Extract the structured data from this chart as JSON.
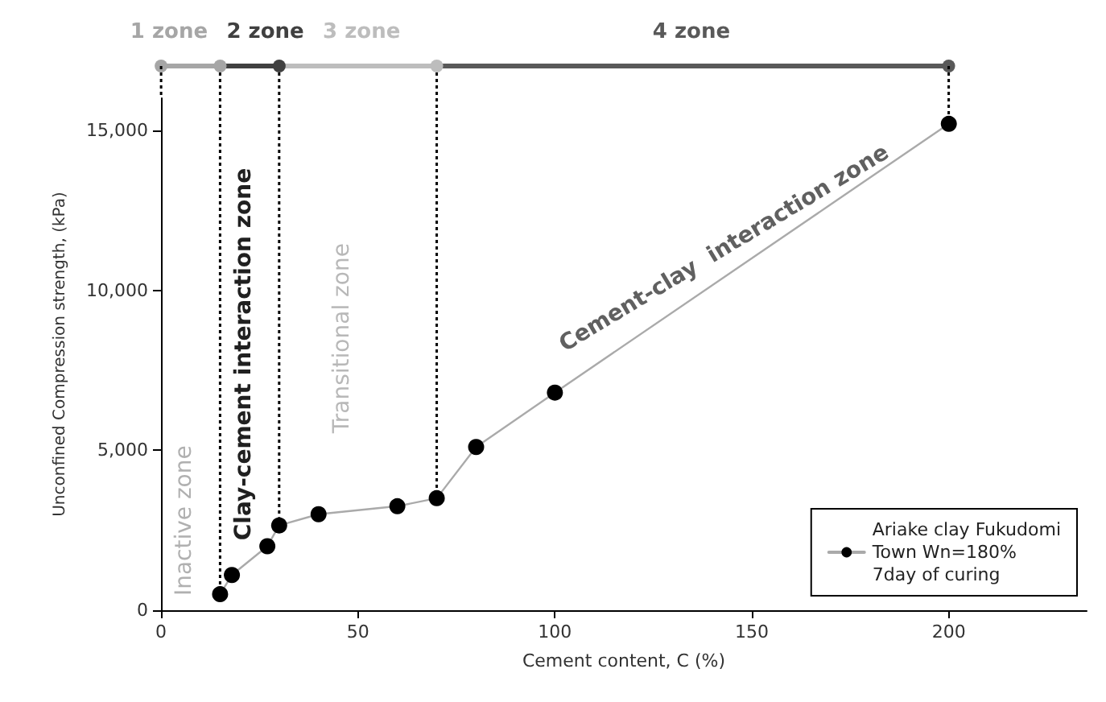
{
  "chart_data": {
    "type": "line",
    "xlabel": "Cement content, C (%)",
    "ylabel": "Unconfined Compression strength, (kPa)",
    "x": [
      15,
      18,
      27,
      30,
      40,
      60,
      70,
      80,
      100,
      200
    ],
    "series": [
      {
        "name": "Ariake clay Fukudomi\nTown Wn=180%\n7day of curing",
        "color": "#000000",
        "values": [
          500,
          1100,
          2000,
          2650,
          3000,
          3250,
          3500,
          5100,
          6800,
          15200
        ]
      }
    ],
    "xlim": [
      0,
      235
    ],
    "xticks": [
      0,
      50,
      100,
      150,
      200
    ],
    "ylim": [
      0,
      16000
    ],
    "yticks": [
      0,
      {
        "value": 5000,
        "label": "5,000"
      },
      {
        "value": 10000,
        "label": "10,000"
      },
      {
        "value": 15000,
        "label": "15,000"
      }
    ],
    "grid": false,
    "legend": "bottom right",
    "marker": "circle",
    "line_style": "solid",
    "ref_lines": [
      {
        "axis": "x",
        "value": 15,
        "line_style": "dotted",
        "color": "#000000"
      },
      {
        "axis": "x",
        "value": 30,
        "line_style": "dotted",
        "color": "#000000"
      },
      {
        "axis": "x",
        "value": 70,
        "line_style": "dotted",
        "color": "#000000"
      }
    ],
    "annotations": [
      "1 zone",
      "2 zone",
      "3 zone",
      "4 zone",
      "Inactive zone",
      "Clay-cement interaction zone",
      "Transitional zone",
      "Cement-clay  interaction zone"
    ]
  }
}
